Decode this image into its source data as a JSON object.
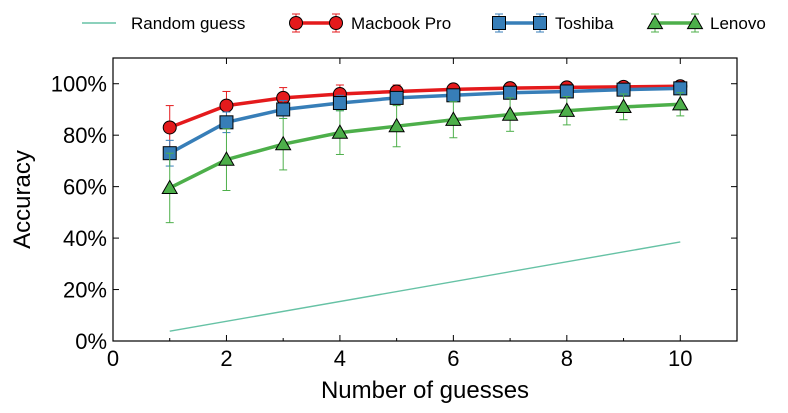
{
  "chart_data": {
    "type": "line",
    "title": "",
    "xlabel": "Number of guesses",
    "ylabel": "Accuracy",
    "xlim": [
      0,
      11
    ],
    "ylim": [
      0,
      1.1
    ],
    "xticks": [
      0,
      2,
      4,
      6,
      8,
      10
    ],
    "xtick_labels": [
      "0",
      "2",
      "4",
      "6",
      "8",
      "10"
    ],
    "yticks": [
      0,
      0.2,
      0.4,
      0.6,
      0.8,
      1.0
    ],
    "ytick_labels": [
      "0%",
      "20%",
      "40%",
      "60%",
      "80%",
      "100%"
    ],
    "grid": false,
    "legend_position": "top, outside plot",
    "x": [
      1,
      2,
      3,
      4,
      5,
      6,
      7,
      8,
      9,
      10
    ],
    "series": [
      {
        "name": "Random guess",
        "color": "#66c2a5",
        "marker": "none",
        "x": [
          1,
          10
        ],
        "values": [
          0.038,
          0.385
        ]
      },
      {
        "name": "Macbook Pro",
        "color": "#e41a1c",
        "marker": "circle",
        "values": [
          0.83,
          0.915,
          0.945,
          0.96,
          0.97,
          0.978,
          0.983,
          0.986,
          0.988,
          0.99
        ],
        "error": [
          0.085,
          0.055,
          0.04,
          0.035,
          0.025,
          0.02,
          0.015,
          0.012,
          0.01,
          0.008
        ]
      },
      {
        "name": "Toshiba",
        "color": "#377eb8",
        "marker": "square",
        "values": [
          0.73,
          0.85,
          0.9,
          0.925,
          0.945,
          0.955,
          0.965,
          0.97,
          0.977,
          0.982
        ],
        "error": [
          0.05,
          0.04,
          0.035,
          0.03,
          0.025,
          0.02,
          0.018,
          0.015,
          0.012,
          0.01
        ]
      },
      {
        "name": "Lenovo",
        "color": "#4daf4a",
        "marker": "triangle",
        "values": [
          0.595,
          0.705,
          0.765,
          0.81,
          0.835,
          0.86,
          0.88,
          0.895,
          0.91,
          0.92
        ],
        "error": [
          0.135,
          0.12,
          0.1,
          0.085,
          0.08,
          0.07,
          0.065,
          0.055,
          0.05,
          0.045
        ]
      }
    ]
  }
}
